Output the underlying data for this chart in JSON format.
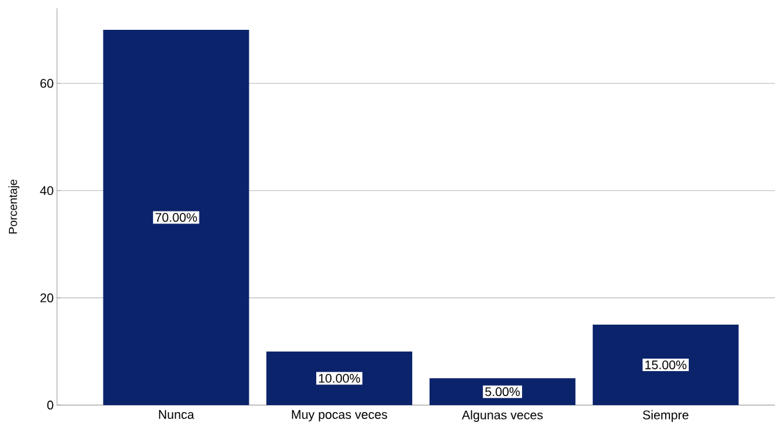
{
  "chart_data": {
    "type": "bar",
    "ylabel": "Porcentaje",
    "categories": [
      "Nunca",
      "Muy pocas veces",
      "Algunas veces",
      "Siempre"
    ],
    "values": [
      70,
      10,
      5,
      15
    ],
    "value_labels": [
      "70.00%",
      "10.00%",
      "5.00%",
      "15.00%"
    ],
    "color": "#0b236b",
    "ylim": [
      0,
      74
    ],
    "yticks": [
      0,
      20,
      40,
      60
    ],
    "grid": "y"
  }
}
